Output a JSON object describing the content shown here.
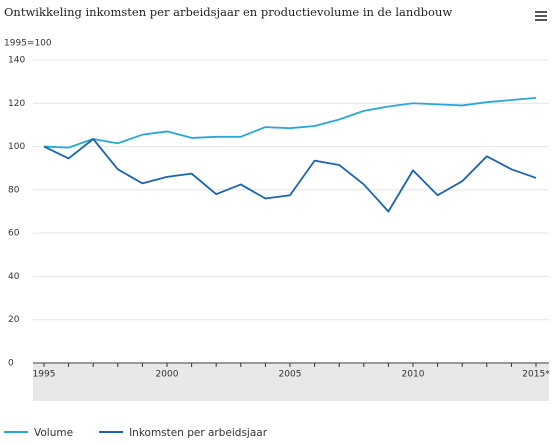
{
  "chart_data": {
    "type": "line",
    "title": "Ontwikkeling inkomsten per arbeidsjaar en productievolume in de landbouw",
    "y_axis_label": "1995=100",
    "categories": [
      "1995",
      null,
      null,
      null,
      null,
      "2000",
      null,
      null,
      null,
      null,
      "2005",
      null,
      null,
      null,
      null,
      "2010",
      null,
      null,
      null,
      null,
      "2015*"
    ],
    "series": [
      {
        "name": "Volume",
        "color": "#29a8d8",
        "values": [
          100,
          99.5,
          103.5,
          101.5,
          105.5,
          107,
          104,
          104.5,
          104.5,
          109,
          108.5,
          109.5,
          112.5,
          116.5,
          118.5,
          120,
          119.5,
          119,
          120.5,
          121.5,
          122.5
        ]
      },
      {
        "name": "Inkomsten per arbeidsjaar",
        "color": "#1a64b0",
        "values": [
          100,
          94.5,
          103.5,
          89.5,
          83,
          86,
          87.5,
          78,
          82.5,
          76,
          77.5,
          93.5,
          91.5,
          82.5,
          70,
          89,
          77.5,
          84,
          95.5,
          89.5,
          85.5
        ]
      }
    ],
    "ylim": [
      0,
      140
    ],
    "yticks": [
      0,
      20,
      40,
      60,
      80,
      100,
      120,
      140
    ],
    "grid": true
  }
}
